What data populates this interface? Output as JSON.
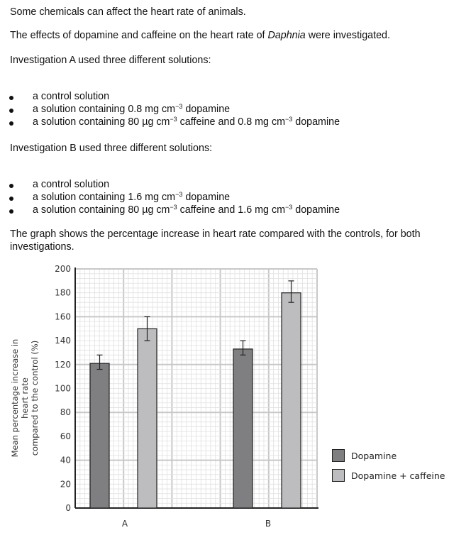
{
  "text": {
    "p1": "Some chemicals can affect the heart rate of animals.",
    "p2a": "The effects of dopamine and caffeine on the heart rate of ",
    "p2b": "Daphnia",
    "p2c": " were investigated.",
    "invA": "Investigation A used three different solutions:",
    "bulletsA": [
      {
        "pre": "a control solution",
        "sup1": "",
        "mid": "",
        "sup2": "",
        "post": ""
      },
      {
        "pre": "a solution containing 0.8 mg cm",
        "sup1": "−3",
        "mid": " dopamine",
        "sup2": "",
        "post": ""
      },
      {
        "pre": "a solution containing 80 µg cm",
        "sup1": "−3",
        "mid": " caffeine and 0.8 mg cm",
        "sup2": "−3",
        "post": " dopamine"
      }
    ],
    "invB": "Investigation B used three different solutions:",
    "bulletsB": [
      {
        "pre": "a control solution",
        "sup1": "",
        "mid": "",
        "sup2": "",
        "post": ""
      },
      {
        "pre": "a solution containing 1.6 mg cm",
        "sup1": "−3",
        "mid": " dopamine",
        "sup2": "",
        "post": ""
      },
      {
        "pre": "a solution containing 80 µg cm",
        "sup1": "−3",
        "mid": " caffeine and 1.6 mg cm",
        "sup2": "−3",
        "post": " dopamine"
      }
    ],
    "graph1": "The graph shows the percentage increase in heart rate compared with the controls, for both",
    "graph2": "investigations."
  },
  "chart_data": {
    "type": "bar",
    "categories": [
      "A",
      "B"
    ],
    "ylabel_line1": "Mean percentage increase in heart rate",
    "ylabel_line2": "compared to the control (%)",
    "ylim": [
      0,
      200
    ],
    "yticks": [
      "0",
      "20",
      "40",
      "60",
      "80",
      "100",
      "120",
      "140",
      "160",
      "180",
      "200"
    ],
    "grid": true,
    "legend_placement": "right",
    "series": [
      {
        "name": "Dopamine",
        "color": "#7f7f81",
        "values": [
          121,
          133
        ],
        "err_low": [
          116,
          128
        ],
        "err_high": [
          128,
          140
        ]
      },
      {
        "name": "Dopamine + caffeine",
        "color": "#bdbdc0",
        "values": [
          150,
          180
        ],
        "err_low": [
          140,
          172
        ],
        "err_high": [
          160,
          190
        ]
      }
    ]
  }
}
